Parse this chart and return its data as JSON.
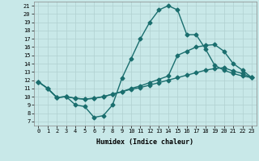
{
  "xlabel": "Humidex (Indice chaleur)",
  "bg_color": "#c8e8e8",
  "grid_color": "#b0d0d0",
  "line_color": "#1a6e6e",
  "xlim": [
    -0.5,
    23.5
  ],
  "ylim": [
    6.5,
    21.5
  ],
  "xticks": [
    0,
    1,
    2,
    3,
    4,
    5,
    6,
    7,
    8,
    9,
    10,
    11,
    12,
    13,
    14,
    15,
    16,
    17,
    18,
    19,
    20,
    21,
    22,
    23
  ],
  "yticks": [
    7,
    8,
    9,
    10,
    11,
    12,
    13,
    14,
    15,
    16,
    17,
    18,
    19,
    20,
    21
  ],
  "line1_x": [
    0,
    1,
    2,
    3,
    4,
    5,
    6,
    7,
    8,
    9,
    10,
    11,
    12,
    13,
    14,
    15,
    16,
    17,
    18,
    19,
    20,
    21,
    22,
    23
  ],
  "line1_y": [
    11.8,
    11.0,
    9.9,
    10.0,
    9.0,
    8.8,
    7.5,
    7.7,
    9.0,
    12.2,
    14.6,
    17.0,
    19.0,
    20.5,
    21.0,
    20.5,
    17.5,
    17.5,
    15.8,
    13.8,
    13.2,
    12.8,
    12.5,
    12.3
  ],
  "line2_x": [
    0,
    1,
    2,
    3,
    4,
    5,
    6,
    7,
    8,
    9,
    10,
    11,
    12,
    13,
    14,
    15,
    16,
    17,
    18,
    19,
    20,
    21,
    22,
    23
  ],
  "line2_y": [
    11.8,
    11.0,
    9.9,
    10.0,
    9.8,
    9.7,
    9.8,
    10.0,
    10.3,
    10.6,
    10.9,
    11.1,
    11.4,
    11.7,
    12.0,
    12.3,
    12.6,
    12.9,
    13.2,
    13.4,
    13.5,
    13.1,
    12.8,
    12.3
  ],
  "line3_x": [
    0,
    1,
    2,
    3,
    4,
    5,
    6,
    7,
    8,
    9,
    10,
    11,
    12,
    13,
    14,
    15,
    16,
    17,
    18,
    19,
    20,
    21,
    22,
    23
  ],
  "line3_y": [
    11.8,
    11.0,
    9.9,
    10.0,
    9.8,
    9.7,
    9.8,
    10.0,
    10.3,
    10.6,
    11.0,
    11.3,
    11.7,
    12.1,
    12.5,
    15.0,
    15.5,
    16.0,
    16.2,
    16.3,
    15.5,
    14.0,
    13.2,
    12.3
  ],
  "marker_size": 2.5,
  "line_width": 1.0,
  "tick_fontsize": 5.0,
  "label_fontsize": 6.0
}
